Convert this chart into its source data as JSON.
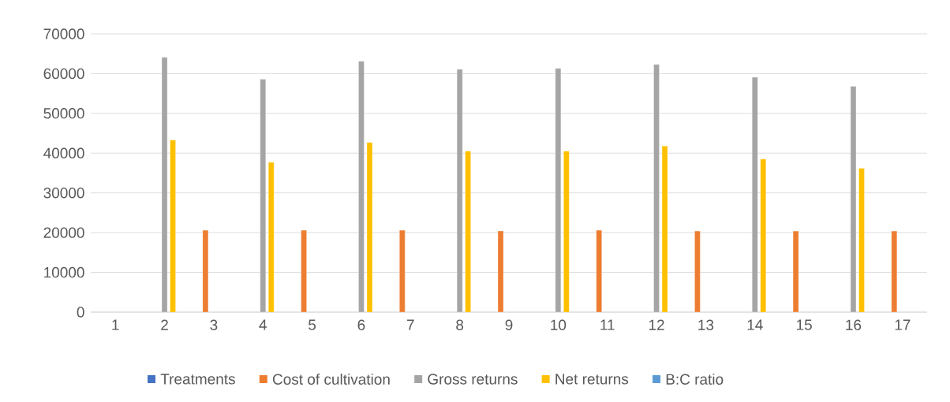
{
  "chart_data": {
    "type": "bar",
    "categories": [
      "1",
      "2",
      "3",
      "4",
      "5",
      "6",
      "7",
      "8",
      "9",
      "10",
      "11",
      "12",
      "13",
      "14",
      "15",
      "16",
      "17"
    ],
    "series": [
      {
        "name": "Treatments",
        "color": "#4472c4",
        "values": [
          null,
          null,
          null,
          null,
          null,
          null,
          null,
          null,
          null,
          null,
          null,
          null,
          null,
          null,
          null,
          null,
          null
        ]
      },
      {
        "name": "Cost of cultivation",
        "color": "#ed7d31",
        "values": [
          null,
          null,
          20600,
          null,
          20600,
          null,
          20600,
          null,
          20400,
          null,
          20600,
          null,
          20400,
          null,
          20400,
          null,
          20400
        ]
      },
      {
        "name": "Gross returns",
        "color": "#a5a5a5",
        "values": [
          null,
          64100,
          null,
          58600,
          null,
          63100,
          null,
          61100,
          null,
          61300,
          null,
          62300,
          null,
          59100,
          null,
          56800,
          null
        ]
      },
      {
        "name": "Net returns",
        "color": "#ffc000",
        "values": [
          null,
          43300,
          null,
          37700,
          null,
          42700,
          null,
          40500,
          null,
          40500,
          null,
          41800,
          null,
          38500,
          null,
          36200,
          null
        ]
      },
      {
        "name": "B:C ratio",
        "color": "#5b9bd5",
        "values": [
          null,
          null,
          null,
          null,
          null,
          null,
          null,
          null,
          null,
          null,
          null,
          null,
          null,
          null,
          null,
          null,
          null
        ]
      }
    ],
    "ylim": [
      0,
      70000
    ],
    "yticks": [
      0,
      10000,
      20000,
      30000,
      40000,
      50000,
      60000,
      70000
    ],
    "grid": "y",
    "legend": "bottom"
  }
}
